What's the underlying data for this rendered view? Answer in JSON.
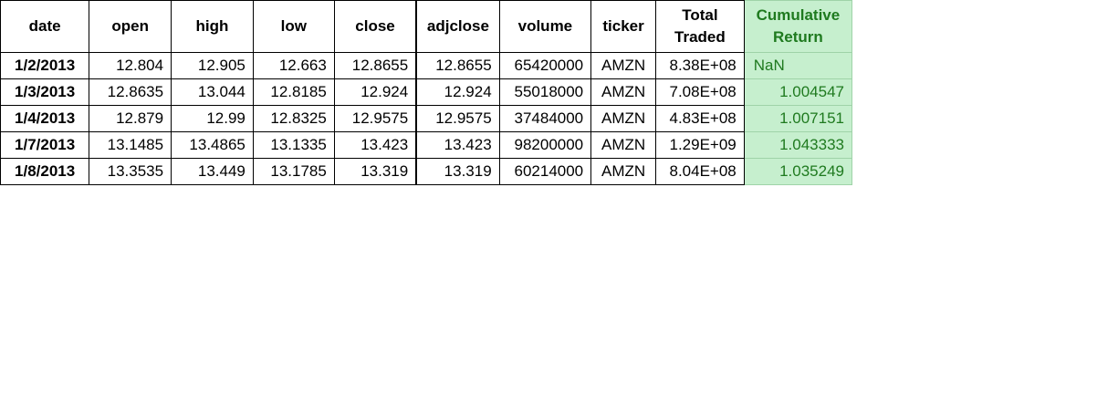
{
  "columns": [
    {
      "label": "date"
    },
    {
      "label": "open"
    },
    {
      "label": "high"
    },
    {
      "label": "low"
    },
    {
      "label": "close"
    },
    {
      "label": "adjclose"
    },
    {
      "label": "volume"
    },
    {
      "label": "ticker"
    },
    {
      "label": "Total\nTraded"
    },
    {
      "label": "Cumulative\nReturn"
    }
  ],
  "rows": [
    {
      "date": "1/2/2013",
      "open": "12.804",
      "high": "12.905",
      "low": "12.663",
      "close": "12.8655",
      "adjclose": "12.8655",
      "volume": "65420000",
      "ticker": "AMZN",
      "total_traded": "8.38E+08",
      "cumulative_return": "NaN"
    },
    {
      "date": "1/3/2013",
      "open": "12.8635",
      "high": "13.044",
      "low": "12.8185",
      "close": "12.924",
      "adjclose": "12.924",
      "volume": "55018000",
      "ticker": "AMZN",
      "total_traded": "7.08E+08",
      "cumulative_return": "1.004547"
    },
    {
      "date": "1/4/2013",
      "open": "12.879",
      "high": "12.99",
      "low": "12.8325",
      "close": "12.9575",
      "adjclose": "12.9575",
      "volume": "37484000",
      "ticker": "AMZN",
      "total_traded": "4.83E+08",
      "cumulative_return": "1.007151"
    },
    {
      "date": "1/7/2013",
      "open": "13.1485",
      "high": "13.4865",
      "low": "13.1335",
      "close": "13.423",
      "adjclose": "13.423",
      "volume": "98200000",
      "ticker": "AMZN",
      "total_traded": "1.29E+09",
      "cumulative_return": "1.043333"
    },
    {
      "date": "1/8/2013",
      "open": "13.3535",
      "high": "13.449",
      "low": "13.1785",
      "close": "13.319",
      "adjclose": "13.319",
      "volume": "60214000",
      "ticker": "AMZN",
      "total_traded": "8.04E+08",
      "cumulative_return": "1.035249"
    }
  ],
  "colors": {
    "highlight_fill": "#c6efce",
    "highlight_text": "#1f7a1f"
  }
}
